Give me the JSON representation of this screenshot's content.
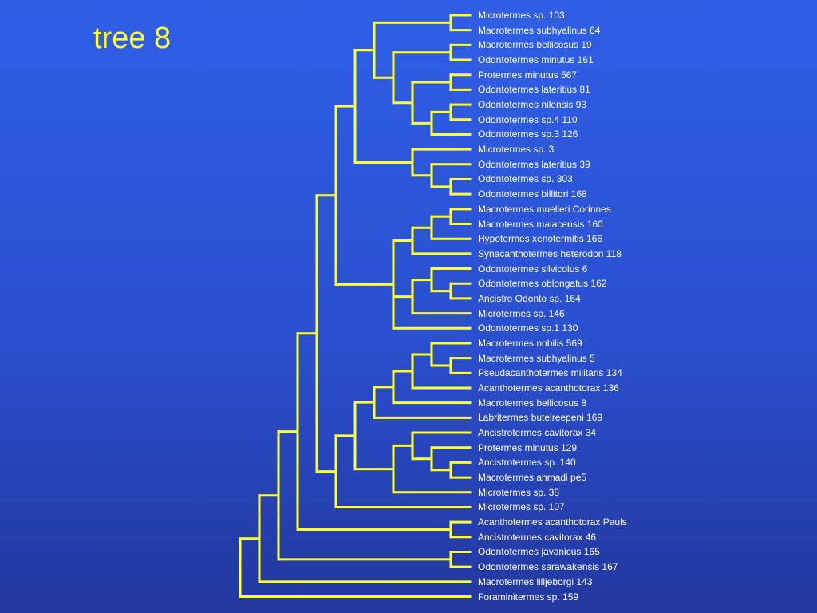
{
  "title": "tree 8",
  "line_color": "#ffff33",
  "background_color": "#2f5fe6",
  "taxa": [
    "Microtermes sp. 103",
    "Macrotermes subhyalinus 64",
    "Macrotermes bellicosus 19",
    "Odontotermes minutus 161",
    "Protermes minutus 567",
    "Odontotermes lateritius 81",
    "Odontotermes nilensis 93",
    "Odontotermes sp.4 110",
    "Odontotermes sp.3 126",
    "Microtermes sp. 3",
    "Odontotermes lateritius 39",
    "Odontotermes sp. 303",
    "Odontotermes billitori 168",
    "Macrotermes muelleri Corinnes",
    "Macrotermes malacensis 160",
    "Hypotermes xenotermitis 166",
    "Synacanthotermes heterodon 118",
    "Odontotermes silvicolus 6",
    "Odontotermes oblongatus 162",
    "Ancistro Odonto sp. 164",
    "Microtermes sp. 146",
    "Odontotermes sp.1 130",
    "Macrotermes nobilis 569",
    "Macrotermes subhyalinus 5",
    "Pseudacanthotermes militaris 134",
    "Acanthotermes acanthotorax 136",
    "Macrotermes bellicosus 8",
    "Labritermes butelreepeni 169",
    "Ancistrotermes cavitorax 34",
    "Protermes minutus 129",
    "Ancistrotermes sp. 140",
    "Macrotermes ahmadi pe5",
    "Microtermes sp. 38",
    "Microtermes sp. 107",
    "Acanthotermes acanthotorax Pauls",
    "Ancistrotermes cavitorax 46",
    "Odontotermes javanicus 165",
    "Odontotermes sarawakensis 167",
    "Macrotermes lilljeborgi 143",
    "Foraminitermes sp. 159"
  ],
  "newick": "(((((((((0,1),((2,3),((4,5),((6,7),8)))),(9,(10,(11,12)))),((((13,14),15),16),((17,(18,19)),20),21)),((((((22,(23,24)),25),26),27),((28,(29,(30,31))),32)),33)),(34,35)),(36,37)),38),39)"
}
